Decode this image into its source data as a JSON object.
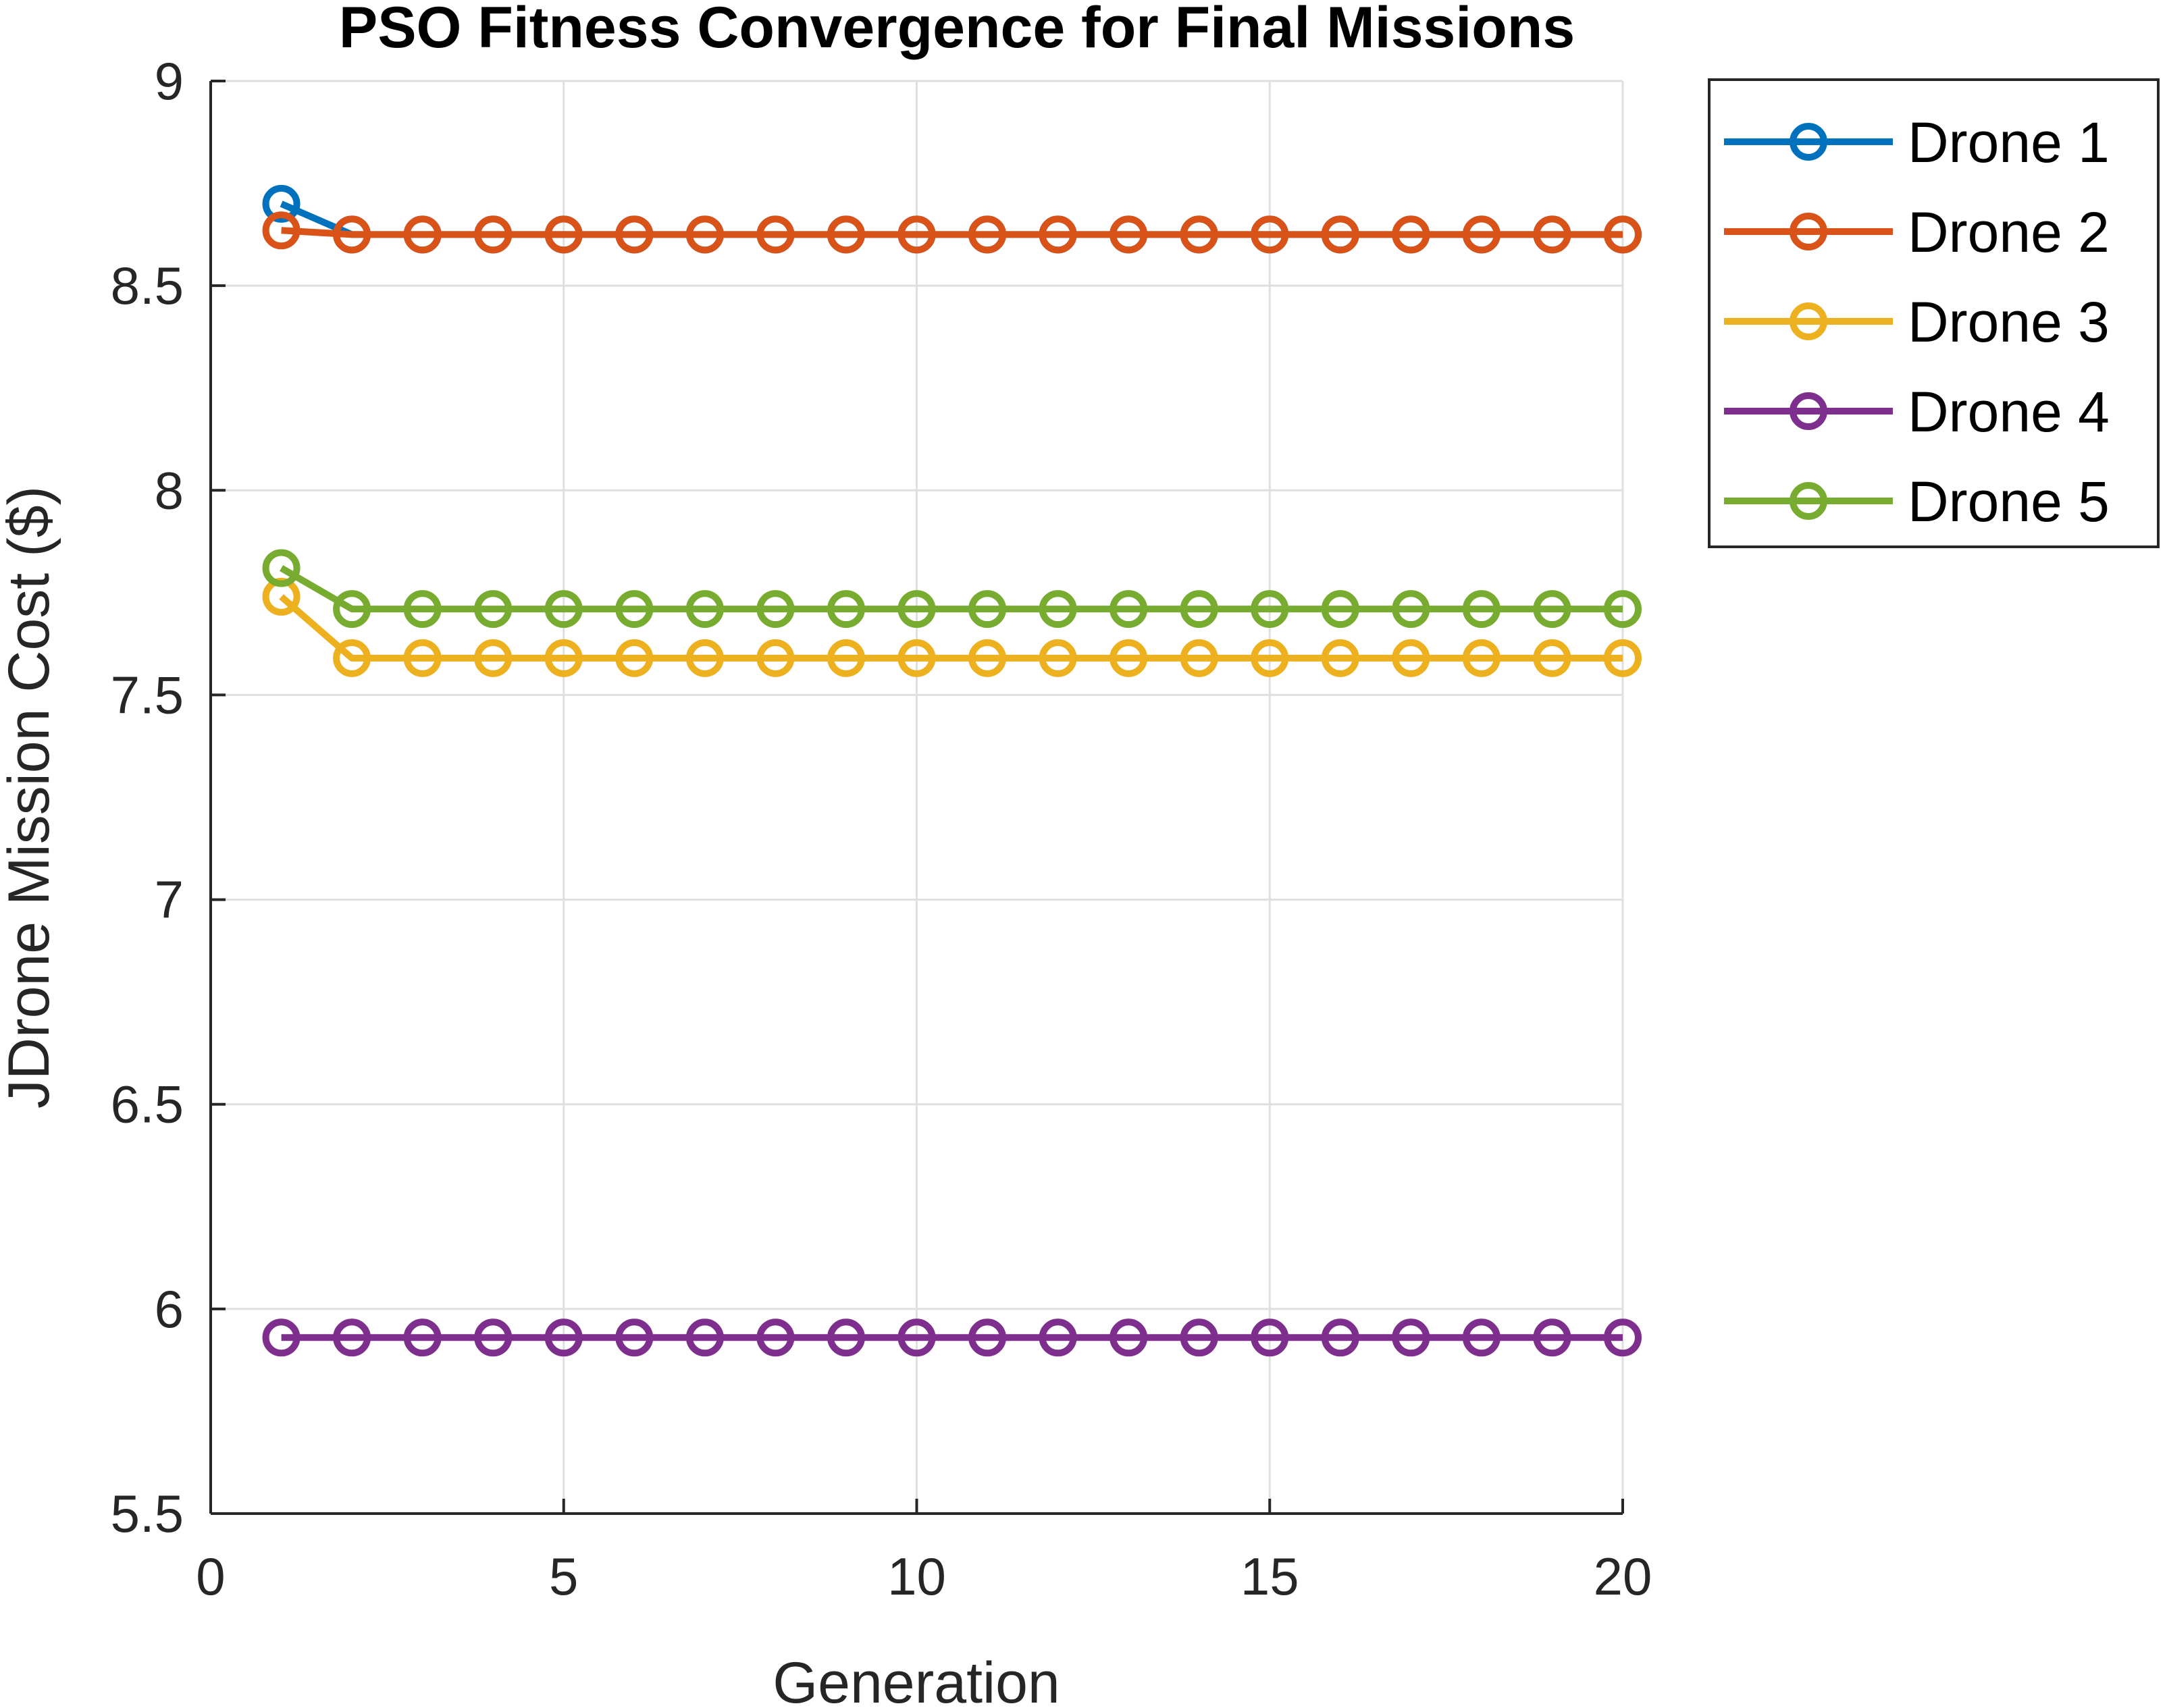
{
  "chart_data": {
    "type": "line",
    "title": "PSO Fitness Convergence for Final Missions",
    "xlabel": "Generation",
    "ylabel": "JDrone Mission Cost ($)",
    "xlim": [
      0,
      20
    ],
    "ylim": [
      5.5,
      9
    ],
    "xticks": [
      0,
      5,
      10,
      15,
      20
    ],
    "xtick_labels": [
      "0",
      "5",
      "10",
      "15",
      "20"
    ],
    "yticks": [
      5.5,
      6,
      6.5,
      7,
      7.5,
      8,
      8.5,
      9
    ],
    "ytick_labels": [
      "5.5",
      "6",
      "6.5",
      "7",
      "7.5",
      "8",
      "8.5",
      "9"
    ],
    "grid": true,
    "legend_position": "outside-top-right",
    "marker": "circle-open",
    "x": [
      1,
      2,
      3,
      4,
      5,
      6,
      7,
      8,
      9,
      10,
      11,
      12,
      13,
      14,
      15,
      16,
      17,
      18,
      19,
      20
    ],
    "series": [
      {
        "name": "Drone 1",
        "color": "#0072BD",
        "values": [
          8.7,
          8.625,
          8.625,
          8.625,
          8.625,
          8.625,
          8.625,
          8.625,
          8.625,
          8.625,
          8.625,
          8.625,
          8.625,
          8.625,
          8.625,
          8.625,
          8.625,
          8.625,
          8.625,
          8.625
        ]
      },
      {
        "name": "Drone 2",
        "color": "#D95319",
        "values": [
          8.635,
          8.625,
          8.625,
          8.625,
          8.625,
          8.625,
          8.625,
          8.625,
          8.625,
          8.625,
          8.625,
          8.625,
          8.625,
          8.625,
          8.625,
          8.625,
          8.625,
          8.625,
          8.625,
          8.625
        ]
      },
      {
        "name": "Drone 3",
        "color": "#EDB120",
        "values": [
          7.74,
          7.59,
          7.59,
          7.59,
          7.59,
          7.59,
          7.59,
          7.59,
          7.59,
          7.59,
          7.59,
          7.59,
          7.59,
          7.59,
          7.59,
          7.59,
          7.59,
          7.59,
          7.59,
          7.59
        ]
      },
      {
        "name": "Drone 4",
        "color": "#7E2F8E",
        "values": [
          5.93,
          5.93,
          5.93,
          5.93,
          5.93,
          5.93,
          5.93,
          5.93,
          5.93,
          5.93,
          5.93,
          5.93,
          5.93,
          5.93,
          5.93,
          5.93,
          5.93,
          5.93,
          5.93,
          5.93
        ]
      },
      {
        "name": "Drone 5",
        "color": "#77AC30",
        "values": [
          7.81,
          7.71,
          7.71,
          7.71,
          7.71,
          7.71,
          7.71,
          7.71,
          7.71,
          7.71,
          7.71,
          7.71,
          7.71,
          7.71,
          7.71,
          7.71,
          7.71,
          7.71,
          7.71,
          7.71
        ]
      }
    ]
  }
}
